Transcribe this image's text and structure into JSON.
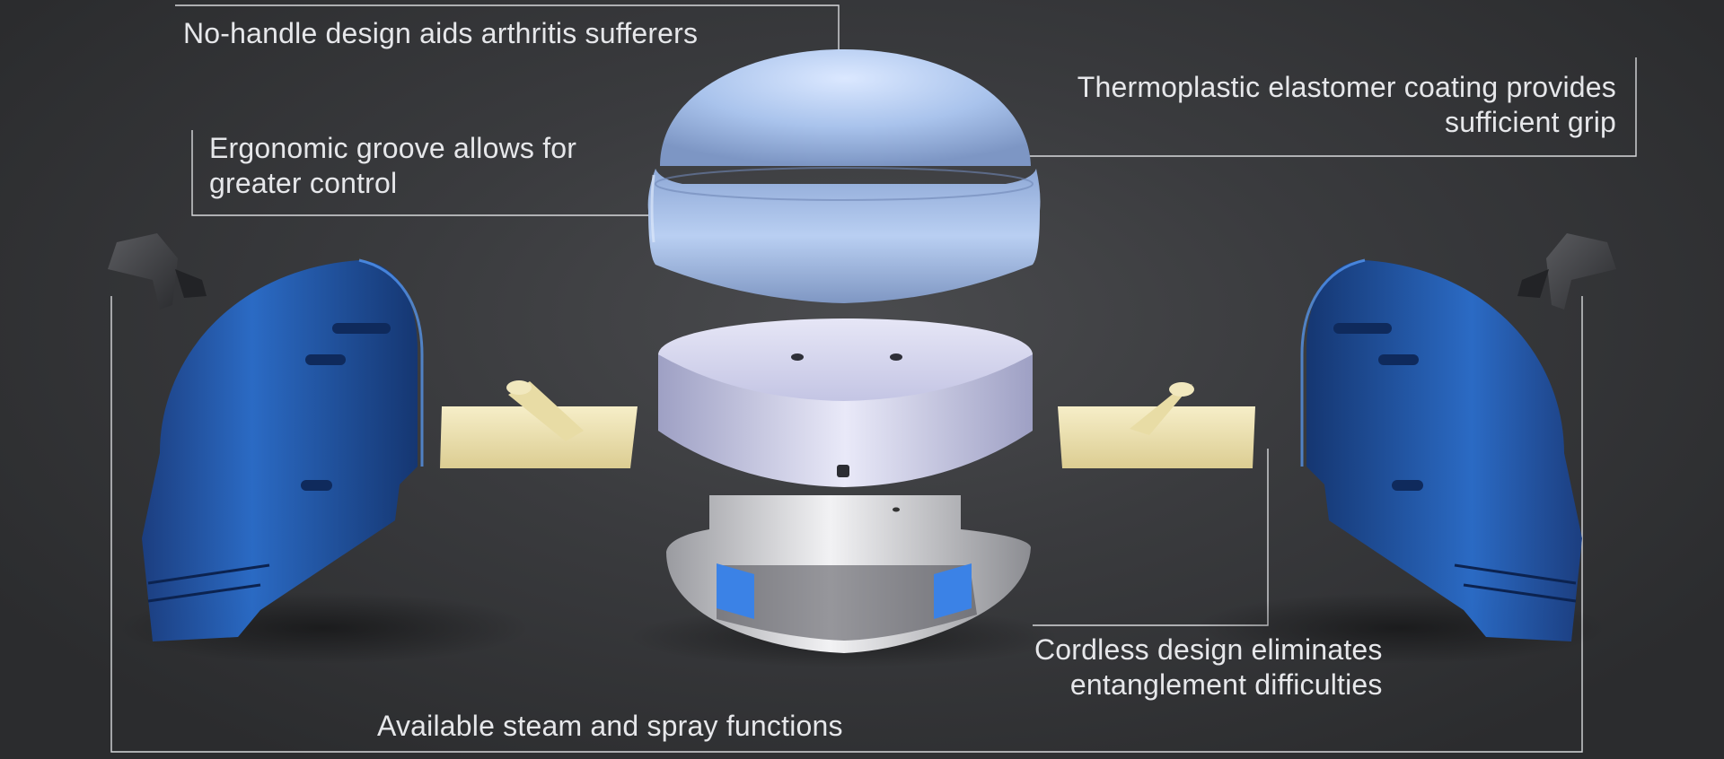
{
  "callouts": {
    "no_handle": "No-handle design aids arthritis sufferers",
    "coating_line1": "Thermoplastic elastomer coating provides",
    "coating_line2": "sufficient grip",
    "groove_line1": "Ergonomic groove allows for",
    "groove_line2": "greater control",
    "cordless_line1": "Cordless design eliminates",
    "cordless_line2": "entanglement difficulties",
    "steam": "Available steam and spray functions"
  },
  "colors": {
    "background": "#3a3b3e",
    "shell_blue": "#1f5fc0",
    "dome_blue": "#a9c3ec",
    "disc_lavender": "#cfd0ea",
    "plate_cream": "#efe4b4",
    "soleplate_silver": "#c9cace",
    "leader_line": "#d8d9dc"
  }
}
